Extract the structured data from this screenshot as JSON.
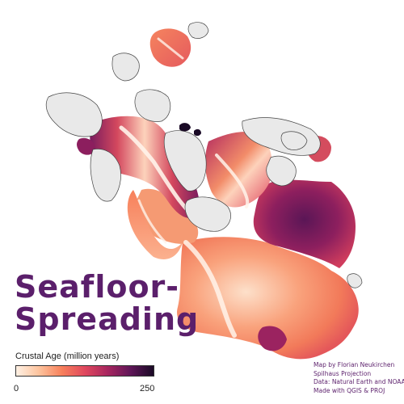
{
  "map": {
    "title_line_1": "Seafloor-",
    "title_line_2": "Spreading",
    "projection": "Spilhaus Projection",
    "land_color": "#e9e9e9",
    "coastline_color": "#444444",
    "title_color": "#5b1f6b",
    "ridge_color": "#fff3ea"
  },
  "legend": {
    "title": "Crustal Age (million years)",
    "min_label": "0",
    "max_label": "250",
    "color_stops": [
      "#fff1e4",
      "#fdc39d",
      "#f7805b",
      "#e0485e",
      "#a7265f",
      "#5f1658",
      "#1a0a26"
    ]
  },
  "credits": {
    "line_1": "Map by Florian Neukirchen",
    "line_2": "Spilhaus Projection",
    "line_3": "Data: Natural Earth and NOAA",
    "line_4": "Made with QGIS & PROJ"
  }
}
